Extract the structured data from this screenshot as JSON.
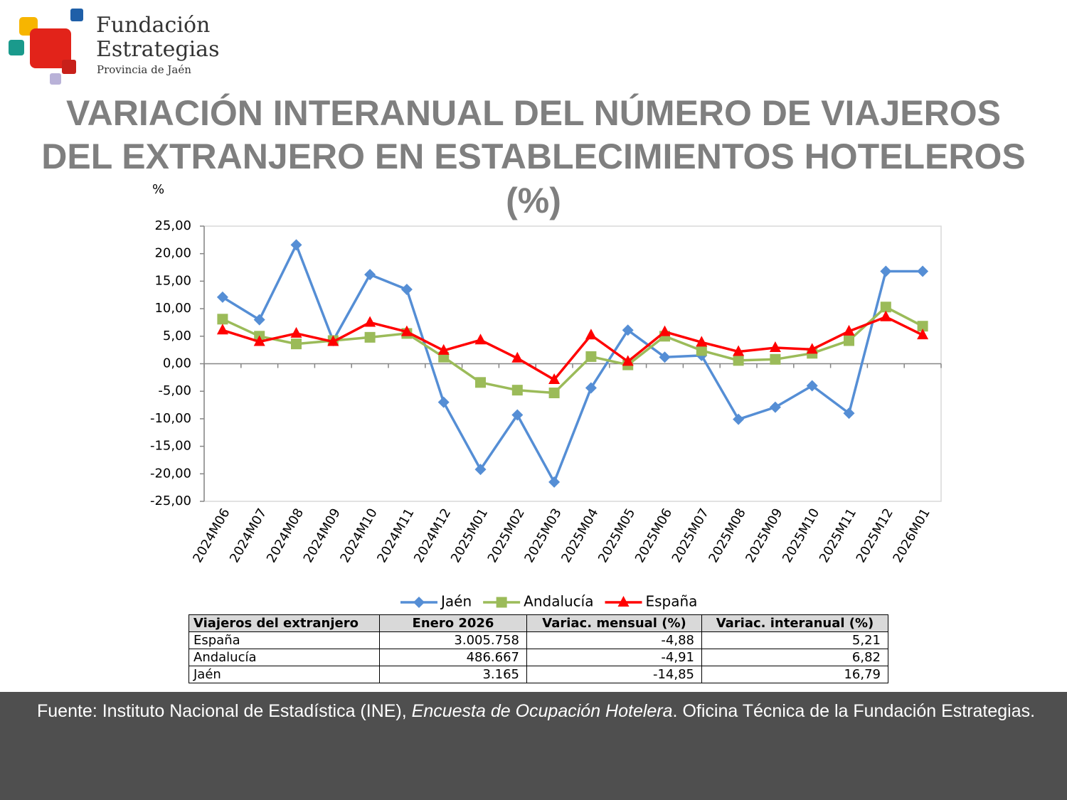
{
  "logo": {
    "line1": "Fundación",
    "line2": "Estrategias",
    "line3": "Provincia de Jaén"
  },
  "chart_data": {
    "type": "line",
    "title_lines": [
      "VARIACIÓN INTERANUAL DEL NÚMERO DE VIAJEROS",
      "DEL EXTRANJERO EN ESTABLECIMIENTOS HOTELEROS",
      "(%)"
    ],
    "y_label": "%",
    "categories": [
      "2024M06",
      "2024M07",
      "2024M08",
      "2024M09",
      "2024M10",
      "2024M11",
      "2024M12",
      "2025M01",
      "2025M02",
      "2025M03",
      "2025M04",
      "2025M05",
      "2025M06",
      "2025M07",
      "2025M08",
      "2025M09",
      "2025M10",
      "2025M11",
      "2025M12",
      "2026M01"
    ],
    "series": [
      {
        "name": "Jaén",
        "color": "#558ed5",
        "marker": "diamond",
        "values": [
          12.1,
          8.0,
          21.6,
          4.2,
          16.2,
          13.5,
          -7.0,
          -19.2,
          -9.3,
          -21.5,
          -4.4,
          6.1,
          1.2,
          1.5,
          -10.1,
          -7.9,
          -4.0,
          -9.0,
          16.8,
          16.79
        ]
      },
      {
        "name": "Andalucía",
        "color": "#9bbb59",
        "marker": "square",
        "values": [
          8.1,
          5.0,
          3.6,
          4.2,
          4.8,
          5.5,
          1.2,
          -3.4,
          -4.8,
          -5.3,
          1.3,
          -0.2,
          5.0,
          2.4,
          0.6,
          0.8,
          1.9,
          4.2,
          10.3,
          6.82
        ]
      },
      {
        "name": "España",
        "color": "#ff0000",
        "marker": "triangle",
        "values": [
          6.1,
          4.0,
          5.5,
          4.0,
          7.5,
          5.8,
          2.4,
          4.3,
          1.0,
          -2.9,
          5.2,
          0.4,
          5.8,
          3.9,
          2.2,
          2.9,
          2.6,
          5.9,
          8.5,
          5.21
        ]
      }
    ],
    "ylim": [
      -25,
      25
    ],
    "yticks": [
      {
        "value": -25,
        "label": "-25,00"
      },
      {
        "value": -20,
        "label": "-20,00"
      },
      {
        "value": -15,
        "label": "-15,00"
      },
      {
        "value": -10,
        "label": "-10,00"
      },
      {
        "value": -5,
        "label": "-5,00"
      },
      {
        "value": 0,
        "label": "0,00"
      },
      {
        "value": 5,
        "label": "5,00"
      },
      {
        "value": 10,
        "label": "10,00"
      },
      {
        "value": 15,
        "label": "15,00"
      },
      {
        "value": 20,
        "label": "20,00"
      },
      {
        "value": 25,
        "label": "25,00"
      }
    ],
    "grid": false,
    "legend_position": "bottom"
  },
  "table": {
    "header": [
      "Viajeros del extranjero",
      "Enero 2026",
      "Variac. mensual (%)",
      "Variac. interanual (%)"
    ],
    "rows": [
      [
        "España",
        "3.005.758",
        "-4,88",
        "5,21"
      ],
      [
        "Andalucía",
        "486.667",
        "-4,91",
        "6,82"
      ],
      [
        "Jaén",
        "3.165",
        "-14,85",
        "16,79"
      ]
    ]
  },
  "source": {
    "parts": [
      "Fuente: Instituto Nacional de Estadística (INE), ",
      "Encuesta de Ocupación Hotelera",
      ". Oficina Técnica de la Fundación Estrategias."
    ]
  }
}
